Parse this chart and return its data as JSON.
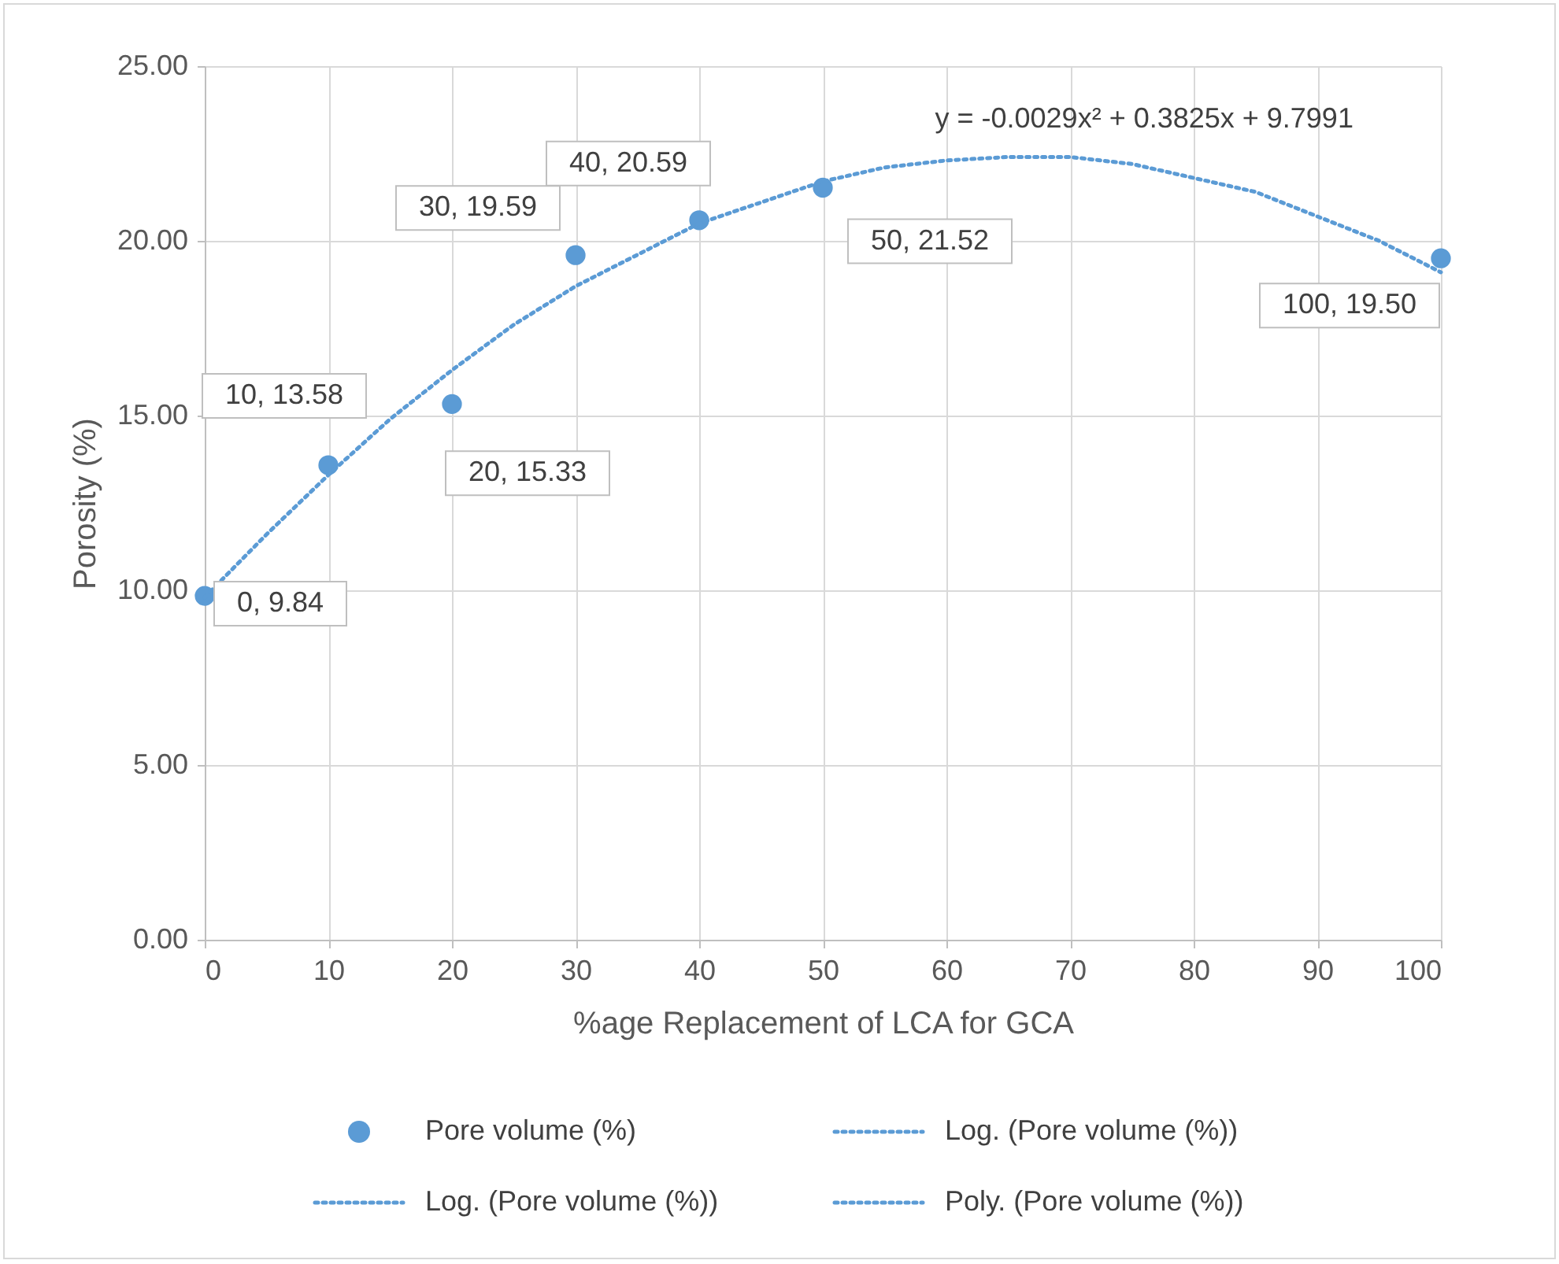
{
  "chart_data": {
    "type": "scatter",
    "xlabel": "%age Replacement of LCA for GCA",
    "ylabel": "Porosity (%)",
    "xlim": [
      0,
      100
    ],
    "xticks": [
      0,
      10,
      20,
      30,
      40,
      50,
      60,
      70,
      80,
      90,
      100
    ],
    "ylim": [
      0,
      25
    ],
    "yticks": [
      {
        "value": 0,
        "label": "0.00"
      },
      {
        "value": 5,
        "label": "5.00"
      },
      {
        "value": 10,
        "label": "10.00"
      },
      {
        "value": 15,
        "label": "15.00"
      },
      {
        "value": 20,
        "label": "20.00"
      },
      {
        "value": 25,
        "label": "25.00"
      }
    ],
    "grid": true,
    "legend": "bottom",
    "annotations": [
      "y = -0.0029x² + 0.3825x + 9.7991"
    ],
    "series": [
      {
        "name": "Pore volume (%)",
        "marker": "circle",
        "color": "#5b9bd5",
        "x": [
          0,
          10,
          20,
          30,
          40,
          50,
          100
        ],
        "values": [
          9.84,
          13.58,
          15.33,
          19.59,
          20.59,
          21.52,
          19.5
        ],
        "value_labels": [
          "0, 9.84",
          "10, 13.58",
          "20, 15.33",
          "30, 19.59",
          "40, 20.59",
          "50, 21.52",
          "100, 19.50"
        ]
      },
      {
        "name": "Log. (Pore volume (%))",
        "type": "line",
        "color": "#5b9bd5",
        "line_style": "dotted"
      },
      {
        "name": "Log. (Pore volume (%))",
        "type": "line",
        "color": "#5b9bd5",
        "line_style": "dotted"
      },
      {
        "name": "Poly. (Pore volume (%))",
        "type": "line",
        "color": "#5b9bd5",
        "line_style": "dotted",
        "x": [
          0,
          5,
          10,
          15,
          20,
          25,
          30,
          35,
          40,
          45,
          50,
          55,
          60,
          65,
          70,
          75,
          80,
          85,
          90,
          95,
          100
        ],
        "values": [
          9.8,
          11.6,
          13.3,
          14.9,
          16.3,
          17.6,
          18.7,
          19.6,
          20.5,
          21.1,
          21.7,
          22.1,
          22.3,
          22.4,
          22.4,
          22.2,
          21.8,
          21.4,
          20.7,
          20.0,
          19.1
        ]
      }
    ]
  }
}
